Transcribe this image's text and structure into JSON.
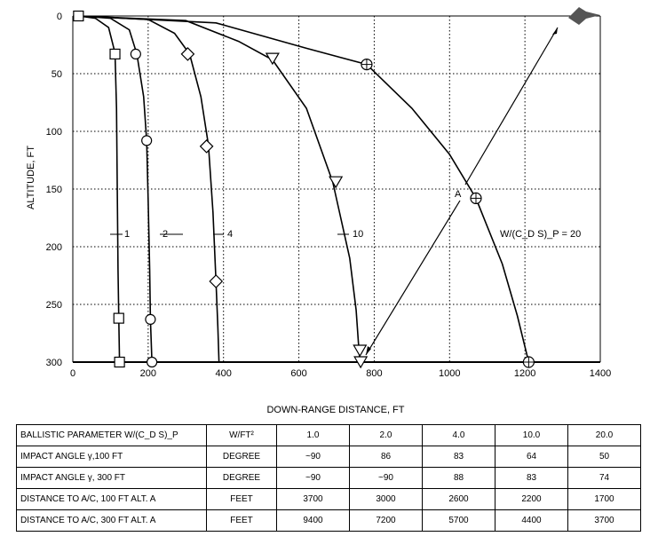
{
  "chart_data": {
    "type": "line",
    "xlabel": "DOWN-RANGE DISTANCE, FT",
    "ylabel": "ALTITUDE, FT",
    "xlim": [
      0,
      1400
    ],
    "ylim": [
      300,
      0
    ],
    "x_ticks": [
      0,
      200,
      400,
      600,
      800,
      1000,
      1200,
      1400
    ],
    "y_ticks": [
      0,
      50,
      100,
      150,
      200,
      250,
      300
    ],
    "grid": true,
    "series": [
      {
        "name": "1",
        "marker": "square",
        "points": [
          [
            15,
            0
          ],
          [
            60,
            2
          ],
          [
            95,
            10
          ],
          [
            112,
            32
          ],
          [
            116,
            80
          ],
          [
            118,
            150
          ],
          [
            120,
            220
          ],
          [
            122,
            262
          ],
          [
            124,
            300
          ]
        ]
      },
      {
        "name": "2",
        "marker": "circle",
        "points": [
          [
            15,
            0
          ],
          [
            100,
            2
          ],
          [
            150,
            12
          ],
          [
            170,
            33
          ],
          [
            188,
            70
          ],
          [
            196,
            108
          ],
          [
            200,
            160
          ],
          [
            204,
            220
          ],
          [
            206,
            263
          ],
          [
            210,
            300
          ]
        ]
      },
      {
        "name": "4",
        "marker": "diamond",
        "points": [
          [
            15,
            0
          ],
          [
            200,
            3
          ],
          [
            270,
            15
          ],
          [
            310,
            33
          ],
          [
            340,
            70
          ],
          [
            360,
            112
          ],
          [
            372,
            170
          ],
          [
            380,
            230
          ],
          [
            385,
            270
          ],
          [
            388,
            300
          ]
        ]
      },
      {
        "name": "10",
        "marker": "triangle-down",
        "points": [
          [
            15,
            0
          ],
          [
            300,
            4
          ],
          [
            440,
            22
          ],
          [
            530,
            38
          ],
          [
            620,
            80
          ],
          [
            690,
            144
          ],
          [
            735,
            210
          ],
          [
            752,
            255
          ],
          [
            758,
            283
          ],
          [
            762,
            300
          ]
        ]
      },
      {
        "name": "W/(C_D S)_P = 20",
        "marker": "circle-plus",
        "points": [
          [
            15,
            0
          ],
          [
            380,
            6
          ],
          [
            620,
            28
          ],
          [
            780,
            42
          ],
          [
            900,
            80
          ],
          [
            1000,
            120
          ],
          [
            1070,
            158
          ],
          [
            1140,
            215
          ],
          [
            1180,
            260
          ],
          [
            1210,
            300
          ]
        ]
      }
    ],
    "markers": {
      "1": [
        [
          15,
          0
        ],
        [
          112,
          33
        ],
        [
          122,
          262
        ],
        [
          124,
          300
        ]
      ],
      "2": [
        [
          167,
          33
        ],
        [
          196,
          108
        ],
        [
          206,
          263
        ],
        [
          210,
          300
        ]
      ],
      "4": [
        [
          305,
          33
        ],
        [
          355,
          113
        ],
        [
          380,
          230
        ]
      ],
      "10": [
        [
          530,
          37
        ],
        [
          698,
          144
        ],
        [
          762,
          290
        ],
        [
          764,
          300
        ]
      ],
      "W/(C_D S)_P = 20": [
        [
          780,
          42
        ],
        [
          1070,
          158
        ],
        [
          1210,
          300
        ]
      ]
    },
    "annotations": {
      "curve_labels": [
        "1",
        "2",
        "4",
        "10",
        "W/(C_D S)_P = 20"
      ],
      "point_label": "A"
    }
  },
  "table": {
    "rows": [
      {
        "label": "BALLISTIC PARAMETER W/(C_D S)_P",
        "unit": "W/FT²",
        "values": [
          "1.0",
          "2.0",
          "4.0",
          "10.0",
          "20.0"
        ]
      },
      {
        "label": "IMPACT ANGLE γ,100 FT",
        "unit": "DEGREE",
        "values": [
          "~90",
          "86",
          "83",
          "64",
          "50"
        ]
      },
      {
        "label": "IMPACT ANGLE γ, 300 FT",
        "unit": "DEGREE",
        "values": [
          "~90",
          "~90",
          "88",
          "83",
          "74"
        ]
      },
      {
        "label": "DISTANCE TO A/C, 100 FT ALT. A",
        "unit": "FEET",
        "values": [
          "3700",
          "3000",
          "2600",
          "2200",
          "1700"
        ]
      },
      {
        "label": "DISTANCE TO A/C, 300 FT ALT. A",
        "unit": "FEET",
        "values": [
          "9400",
          "7200",
          "5700",
          "4400",
          "3700"
        ]
      }
    ]
  }
}
